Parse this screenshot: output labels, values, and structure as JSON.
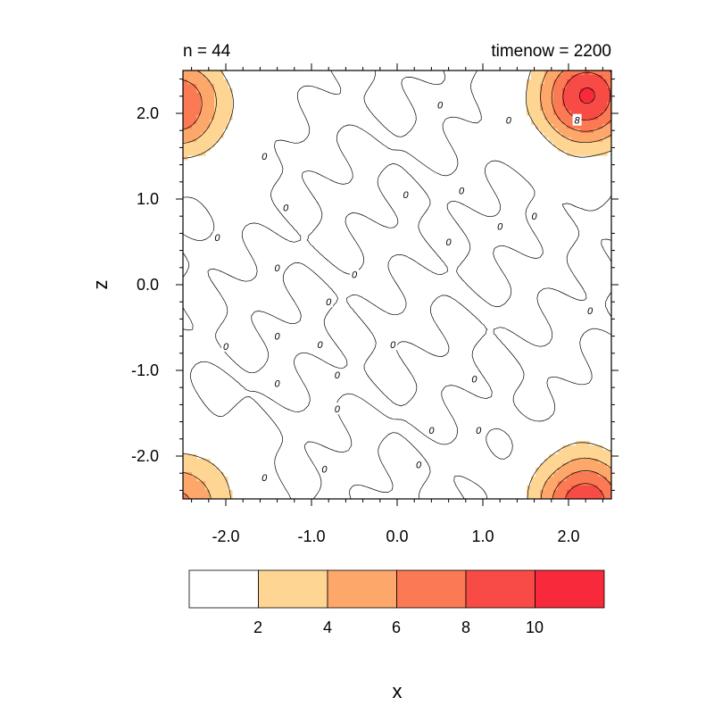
{
  "chart_data": {
    "type": "heatmap",
    "title_left": "n = 44",
    "title_right": "timenow = 2200",
    "xlabel": "x",
    "ylabel": "z",
    "xlim": [
      -2.5,
      2.5
    ],
    "ylim": [
      -2.5,
      2.5
    ],
    "x_ticks": [
      -2.0,
      -1.0,
      0.0,
      1.0,
      2.0
    ],
    "x_tick_labels": [
      "-2.0",
      "-1.0",
      "0.0",
      "1.0",
      "2.0"
    ],
    "y_ticks": [
      2.0,
      1.0,
      0.0,
      -1.0,
      -2.0
    ],
    "y_tick_labels": [
      "2.0",
      "1.0",
      "0.0",
      "-1.0",
      "-2.0"
    ],
    "colorbar": {
      "levels": [
        2,
        4,
        6,
        8,
        10
      ],
      "level_labels": [
        "2",
        "4",
        "6",
        "8",
        "10"
      ],
      "colors": [
        "#ffffff",
        "#fed593",
        "#fda76b",
        "#fb7953",
        "#f94b45",
        "#f7293a"
      ]
    },
    "contour_labels": [
      {
        "x": 2.1,
        "z": 1.92,
        "text": "8"
      },
      {
        "x": 0.5,
        "z": 2.1,
        "text": "0"
      },
      {
        "x": 1.3,
        "z": 1.92,
        "text": "0"
      },
      {
        "x": -1.55,
        "z": 1.5,
        "text": "0"
      },
      {
        "x": 0.1,
        "z": 1.05,
        "text": "0"
      },
      {
        "x": 0.75,
        "z": 1.1,
        "text": "0"
      },
      {
        "x": -1.3,
        "z": 0.9,
        "text": "0"
      },
      {
        "x": 1.6,
        "z": 0.8,
        "text": "0"
      },
      {
        "x": 1.2,
        "z": 0.68,
        "text": "0"
      },
      {
        "x": -2.1,
        "z": 0.55,
        "text": "0"
      },
      {
        "x": 0.6,
        "z": 0.5,
        "text": "0"
      },
      {
        "x": -1.4,
        "z": 0.2,
        "text": "0"
      },
      {
        "x": -0.5,
        "z": 0.12,
        "text": "0"
      },
      {
        "x": -0.8,
        "z": -0.2,
        "text": "0"
      },
      {
        "x": 2.25,
        "z": -0.3,
        "text": "0"
      },
      {
        "x": -1.4,
        "z": -0.6,
        "text": "0"
      },
      {
        "x": -0.9,
        "z": -0.7,
        "text": "0"
      },
      {
        "x": -0.05,
        "z": -0.7,
        "text": "0"
      },
      {
        "x": -2.0,
        "z": -0.72,
        "text": "0"
      },
      {
        "x": -0.7,
        "z": -1.05,
        "text": "0"
      },
      {
        "x": 0.9,
        "z": -1.1,
        "text": "0"
      },
      {
        "x": -1.4,
        "z": -1.15,
        "text": "0"
      },
      {
        "x": -0.7,
        "z": -1.45,
        "text": "0"
      },
      {
        "x": 0.4,
        "z": -1.7,
        "text": "0"
      },
      {
        "x": 0.95,
        "z": -1.7,
        "text": "0"
      },
      {
        "x": 0.25,
        "z": -2.1,
        "text": "0"
      },
      {
        "x": -0.85,
        "z": -2.15,
        "text": "0"
      },
      {
        "x": -1.55,
        "z": -2.25,
        "text": "0"
      }
    ],
    "peaks": [
      {
        "x": 2.2,
        "z": 2.2,
        "amplitude": 10.3
      },
      {
        "x": -2.55,
        "z": 2.1,
        "amplitude": 7.8
      },
      {
        "x": 2.2,
        "z": -2.55,
        "amplitude": 9.6
      },
      {
        "x": -2.55,
        "z": -2.55,
        "amplitude": 6.5
      }
    ]
  }
}
